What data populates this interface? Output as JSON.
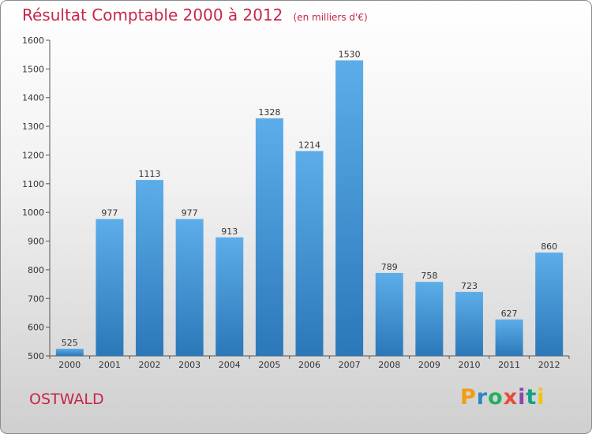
{
  "header": {
    "title": "Résultat Comptable 2000 à 2012",
    "unit": "(en milliers d'€)"
  },
  "footer": {
    "city": "OSTWALD",
    "logo_text": "Proxiti"
  },
  "colors": {
    "title": "#c8254a",
    "bar_light": "#5dadea",
    "bar_dark": "#2b78b8",
    "logo": [
      "#f39c12",
      "#2e86c1",
      "#27ae60",
      "#e74c3c",
      "#8e44ad",
      "#16a085",
      "#f1c40f"
    ]
  },
  "chart_data": {
    "type": "bar",
    "title": "Résultat Comptable 2000 à 2012",
    "xlabel": "",
    "ylabel": "",
    "categories": [
      "2000",
      "2001",
      "2002",
      "2003",
      "2004",
      "2005",
      "2006",
      "2007",
      "2008",
      "2009",
      "2010",
      "2011",
      "2012"
    ],
    "values": [
      525,
      977,
      1113,
      977,
      913,
      1328,
      1214,
      1530,
      789,
      758,
      723,
      627,
      860
    ],
    "ylim": [
      500,
      1600
    ],
    "yticks": [
      500,
      600,
      700,
      800,
      900,
      1000,
      1100,
      1200,
      1300,
      1400,
      1500,
      1600
    ],
    "grid": false,
    "data_labels": true
  }
}
